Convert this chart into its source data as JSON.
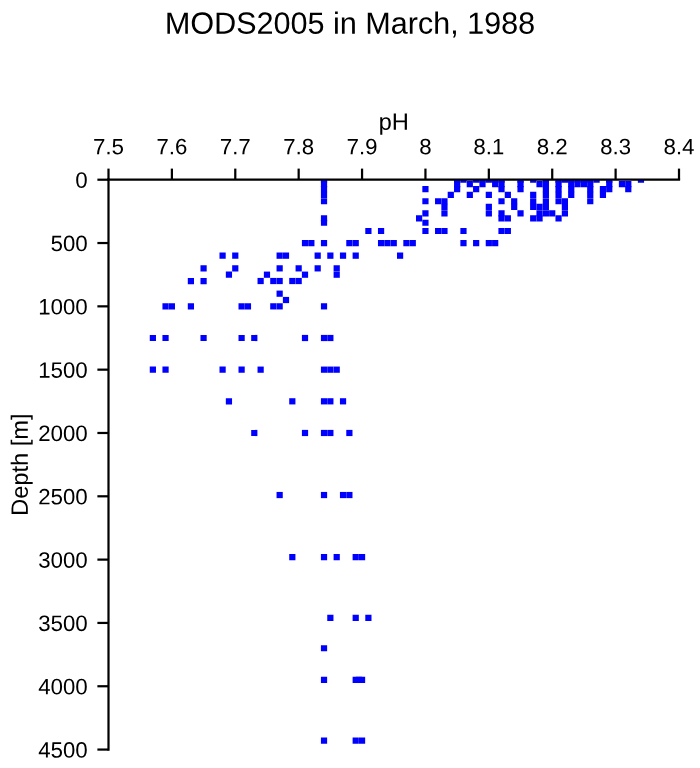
{
  "chart_data": {
    "type": "scatter",
    "title": "MODS2005 in March, 1988",
    "xlabel": "pH",
    "ylabel": "Depth [m]",
    "xlim": [
      7.5,
      8.4
    ],
    "xticks": [
      7.5,
      7.6,
      7.7,
      7.8,
      7.9,
      8,
      8.1,
      8.2,
      8.3,
      8.4
    ],
    "ylim": [
      4500,
      0
    ],
    "yticks": [
      0,
      500,
      1000,
      1500,
      2000,
      2500,
      3000,
      3500,
      4000,
      4500
    ],
    "grid": false,
    "legend": false,
    "marker": "square",
    "series": [
      {
        "color": "#0000ff",
        "x": [
          7.84,
          8.05,
          8.06,
          8.08,
          8.09,
          8.1,
          8.11,
          8.12,
          8.15,
          8.17,
          8.19,
          8.21,
          8.22,
          8.23,
          8.24,
          8.25,
          8.26,
          8.27,
          8.29,
          8.34,
          7.84,
          8.05,
          8.07,
          8.09,
          8.11,
          8.12,
          8.15,
          8.18,
          8.19,
          8.21,
          8.23,
          8.24,
          8.25,
          8.26,
          8.29,
          8.31,
          8.32,
          7.84,
          8.0,
          8.05,
          8.08,
          8.12,
          8.15,
          8.19,
          8.21,
          8.23,
          8.26,
          8.28,
          8.29,
          8.32,
          7.84,
          8.04,
          8.07,
          8.1,
          8.13,
          8.17,
          8.19,
          8.21,
          8.23,
          8.26,
          8.28,
          7.84,
          8.0,
          8.02,
          8.03,
          8.12,
          8.14,
          8.17,
          8.19,
          8.21,
          8.22,
          8.26,
          8.03,
          8.1,
          8.14,
          8.17,
          8.18,
          8.19,
          8.22,
          8.0,
          8.03,
          8.1,
          8.12,
          8.15,
          8.18,
          8.19,
          8.2,
          8.22,
          7.84,
          7.99,
          8.12,
          8.13,
          8.17,
          8.18,
          8.21,
          7.84,
          8.0,
          7.91,
          7.93,
          8.0,
          8.02,
          8.03,
          8.06,
          8.12,
          8.13,
          7.81,
          7.82,
          7.84,
          7.88,
          7.89,
          7.93,
          7.94,
          7.95,
          7.97,
          7.98,
          8.06,
          8.08,
          8.1,
          8.11,
          7.68,
          7.7,
          7.77,
          7.78,
          7.83,
          7.85,
          7.87,
          7.89,
          7.96,
          7.65,
          7.7,
          7.77,
          7.8,
          7.83,
          7.86,
          7.69,
          7.75,
          7.81,
          7.86,
          7.63,
          7.65,
          7.74,
          7.76,
          7.77,
          7.79,
          7.8,
          7.77,
          7.78,
          7.59,
          7.6,
          7.63,
          7.71,
          7.72,
          7.76,
          7.77,
          7.84,
          7.57,
          7.59,
          7.65,
          7.71,
          7.73,
          7.81,
          7.84,
          7.85,
          7.57,
          7.59,
          7.68,
          7.71,
          7.74,
          7.84,
          7.85,
          7.86,
          7.69,
          7.79,
          7.84,
          7.85,
          7.87,
          7.73,
          7.81,
          7.84,
          7.85,
          7.88,
          7.77,
          7.84,
          7.87,
          7.88,
          7.79,
          7.84,
          7.86,
          7.89,
          7.9,
          7.85,
          7.89,
          7.91,
          7.84,
          7.84,
          7.89,
          7.895,
          7.9,
          7.84,
          7.89,
          7.9
        ],
        "values": [
          0,
          0,
          0,
          0,
          0,
          0,
          0,
          0,
          0,
          0,
          0,
          0,
          0,
          0,
          0,
          0,
          0,
          0,
          0,
          0,
          35,
          35,
          35,
          35,
          35,
          35,
          35,
          35,
          35,
          35,
          35,
          35,
          35,
          35,
          35,
          35,
          35,
          75,
          75,
          75,
          75,
          75,
          75,
          75,
          75,
          75,
          75,
          75,
          75,
          75,
          120,
          120,
          120,
          120,
          120,
          120,
          120,
          120,
          120,
          120,
          120,
          170,
          170,
          170,
          170,
          170,
          170,
          170,
          170,
          170,
          170,
          170,
          215,
          215,
          215,
          215,
          215,
          215,
          215,
          265,
          265,
          265,
          265,
          265,
          265,
          265,
          265,
          265,
          305,
          305,
          305,
          305,
          305,
          305,
          305,
          340,
          340,
          405,
          405,
          405,
          405,
          405,
          405,
          405,
          405,
          500,
          500,
          500,
          500,
          500,
          500,
          500,
          500,
          500,
          500,
          500,
          500,
          500,
          500,
          600,
          600,
          600,
          600,
          600,
          600,
          600,
          600,
          600,
          700,
          700,
          700,
          700,
          700,
          700,
          750,
          750,
          750,
          750,
          800,
          800,
          800,
          800,
          800,
          800,
          800,
          900,
          950,
          1000,
          1000,
          1000,
          1000,
          1000,
          1000,
          1000,
          1000,
          1250,
          1250,
          1250,
          1250,
          1250,
          1250,
          1250,
          1250,
          1500,
          1500,
          1500,
          1500,
          1500,
          1500,
          1500,
          1500,
          1750,
          1750,
          1750,
          1750,
          1750,
          2000,
          2000,
          2000,
          2000,
          2000,
          2490,
          2490,
          2490,
          2490,
          2980,
          2980,
          2980,
          2980,
          2980,
          3460,
          3460,
          3460,
          3700,
          3950,
          3950,
          3950,
          3950,
          4430,
          4430,
          4430
        ]
      }
    ]
  }
}
